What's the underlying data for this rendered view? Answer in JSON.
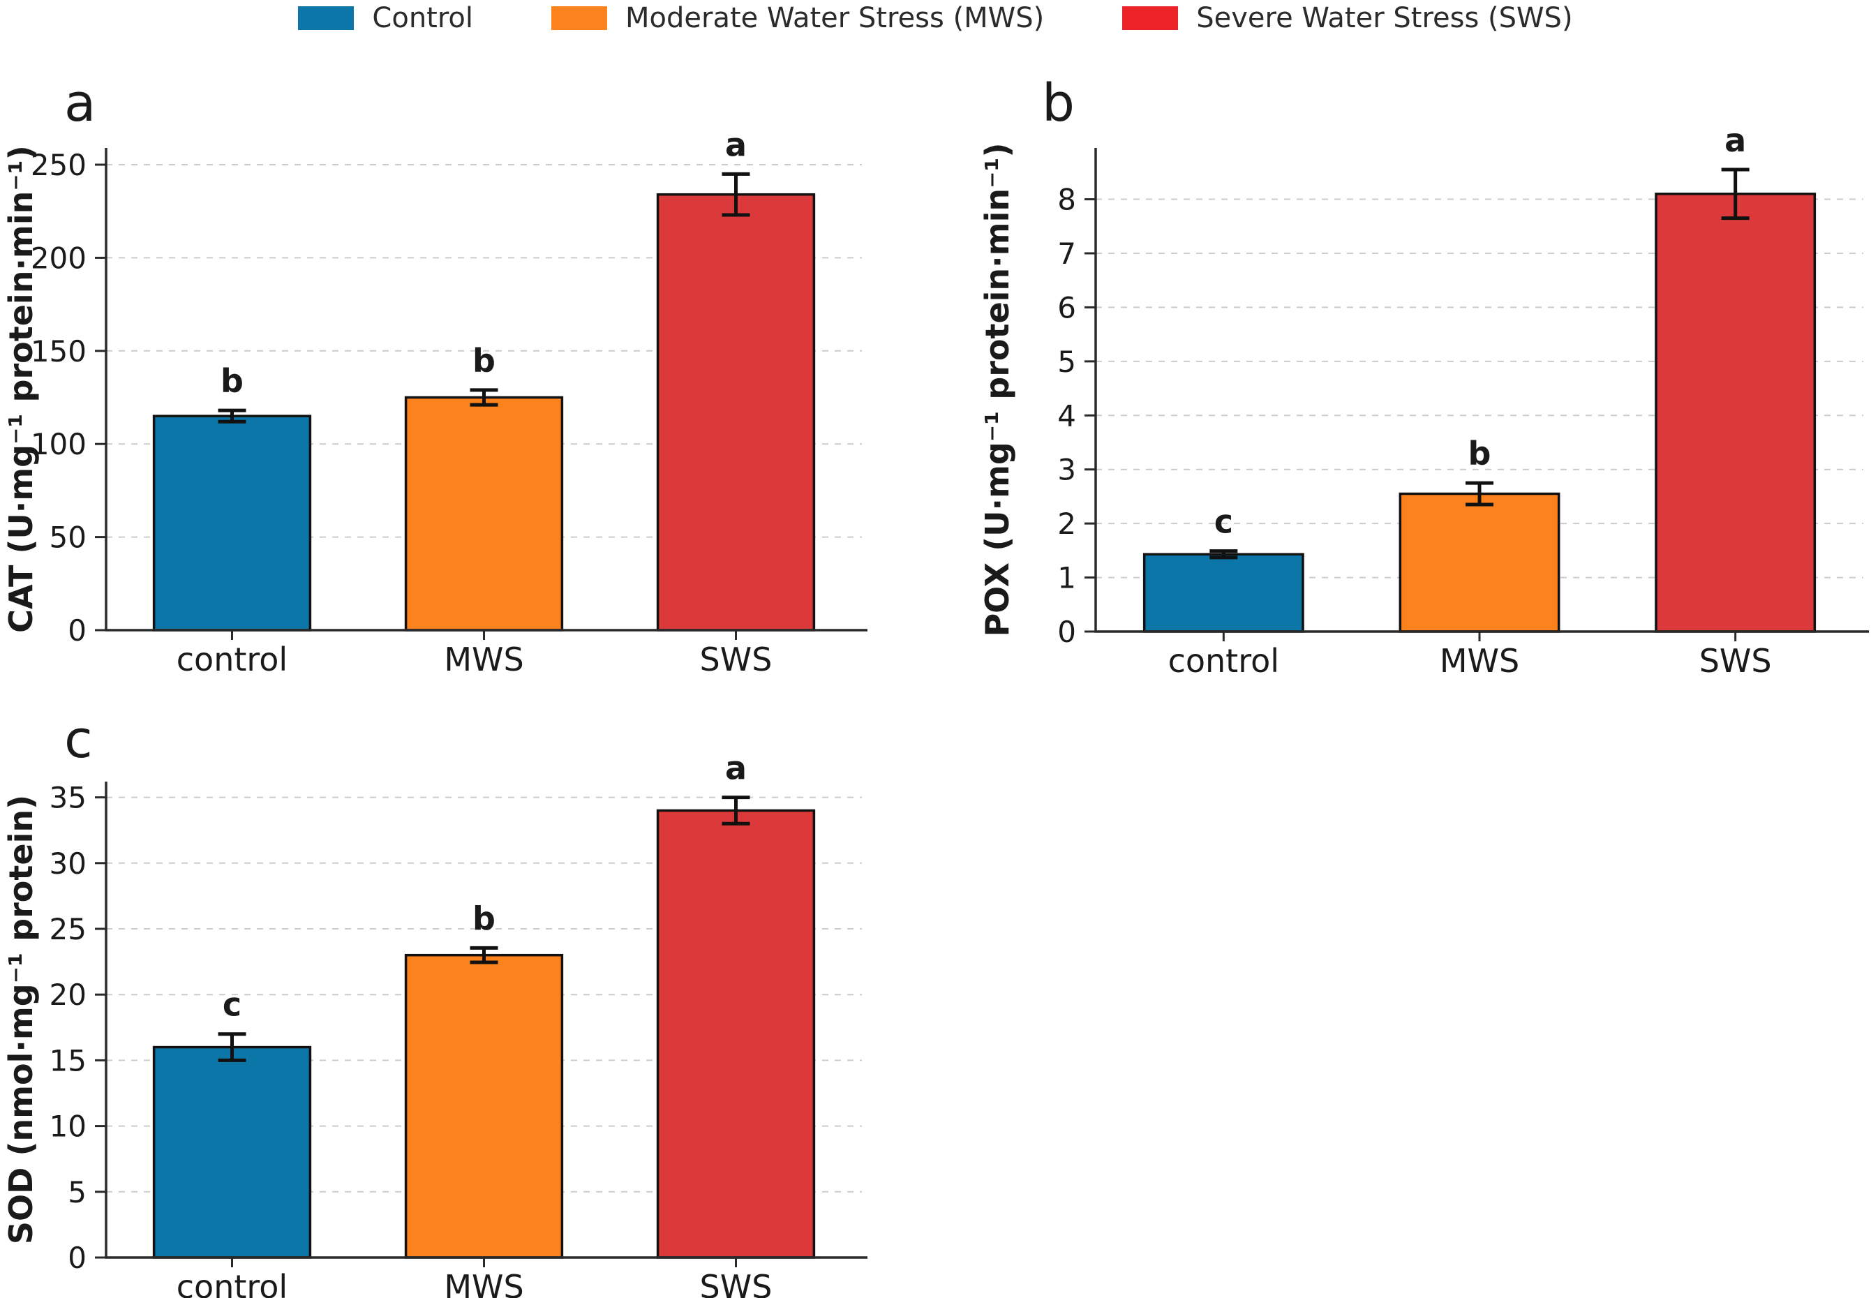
{
  "figure": {
    "background": "#ffffff",
    "text_color": "#1a1a1a",
    "gridline_color": "#cccccc",
    "spine_color": "#2a2a2a"
  },
  "legend": {
    "items": [
      {
        "label": "Control",
        "color": "#0d76a8"
      },
      {
        "label": "Moderate Water Stress (MWS)",
        "color": "#fb821c"
      },
      {
        "label": "Severe Water Stress (SWS)",
        "color": "#ec2428"
      }
    ]
  },
  "chart_data": [
    {
      "type": "bar",
      "panel_label": "a",
      "ylabel": "CAT (U·mg⁻¹ protein·min⁻¹)",
      "xlabel": "",
      "categories": [
        "control",
        "MWS",
        "SWS"
      ],
      "values": [
        115,
        125,
        234
      ],
      "errors": [
        3,
        4,
        11
      ],
      "sig_letters": [
        "b",
        "b",
        "a"
      ],
      "bar_colors": [
        "#0d76a8",
        "#fb821c",
        "#dc3a3a"
      ],
      "yticks": [
        0,
        50,
        100,
        150,
        200,
        250
      ],
      "ylim": [
        0,
        259
      ],
      "grid": "horizontal-dashed",
      "legend_position": "shared-top-center"
    },
    {
      "type": "bar",
      "panel_label": "b",
      "ylabel": "POX (U·mg⁻¹ protein·min⁻¹)",
      "xlabel": "",
      "categories": [
        "control",
        "MWS",
        "SWS"
      ],
      "values": [
        1.43,
        2.55,
        8.1
      ],
      "errors": [
        0.06,
        0.2,
        0.45
      ],
      "sig_letters": [
        "c",
        "b",
        "a"
      ],
      "bar_colors": [
        "#0d76a8",
        "#fb821c",
        "#dc3a3a"
      ],
      "yticks": [
        0,
        1,
        2,
        3,
        4,
        5,
        6,
        7,
        8
      ],
      "ylim": [
        0,
        8.95
      ],
      "grid": "horizontal-dashed",
      "legend_position": "shared-top-center"
    },
    {
      "type": "bar",
      "panel_label": "c",
      "ylabel": "SOD (nmol·mg⁻¹ protein)",
      "xlabel": "",
      "categories": [
        "control",
        "MWS",
        "SWS"
      ],
      "values": [
        16,
        23,
        34
      ],
      "errors": [
        1,
        0.55,
        1
      ],
      "sig_letters": [
        "c",
        "b",
        "a"
      ],
      "bar_colors": [
        "#0d76a8",
        "#fb821c",
        "#dc3a3a"
      ],
      "yticks": [
        0,
        5,
        10,
        15,
        20,
        25,
        30,
        35
      ],
      "ylim": [
        0,
        36.2
      ],
      "grid": "horizontal-dashed",
      "legend_position": "shared-top-center"
    }
  ]
}
